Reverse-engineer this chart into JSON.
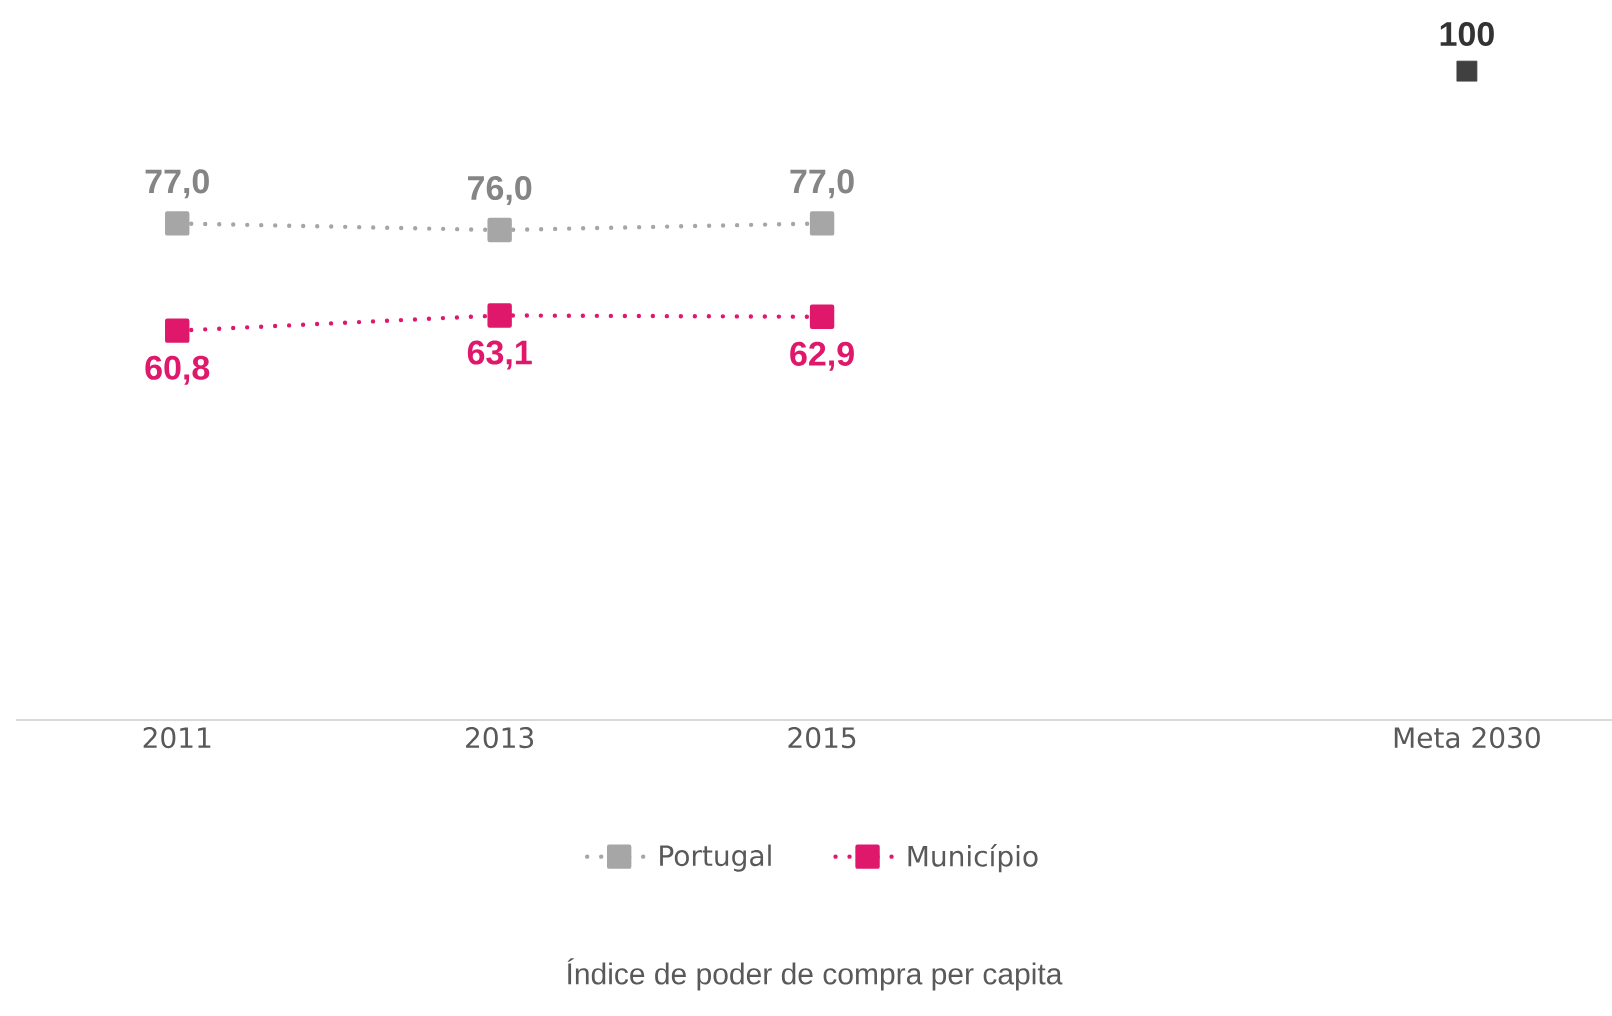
{
  "chart_data": {
    "type": "line",
    "categories": [
      "2011",
      "2013",
      "2015",
      null,
      "Meta 2030"
    ],
    "series": [
      {
        "name": "Portugal",
        "color": "#a6a6a6",
        "values": [
          77.0,
          76.0,
          77.0,
          null,
          null
        ],
        "value_labels": [
          "77,0",
          "76,0",
          "77,0",
          null,
          null
        ]
      },
      {
        "name": "Município",
        "color": "#e0186c",
        "values": [
          60.8,
          63.1,
          62.9,
          null,
          null
        ],
        "value_labels": [
          "60,8",
          "63,1",
          "62,9",
          null,
          null
        ]
      },
      {
        "type": "scatter",
        "color": "#404040",
        "values": [
          null,
          null,
          null,
          null,
          100
        ],
        "value_labels": [
          null,
          null,
          null,
          null,
          "100"
        ]
      }
    ],
    "marker": "square",
    "line_style": "dotted",
    "legend": "bottom",
    "tick_labels": "x",
    "annotations": [
      "Índice de poder de compra per capita"
    ]
  }
}
